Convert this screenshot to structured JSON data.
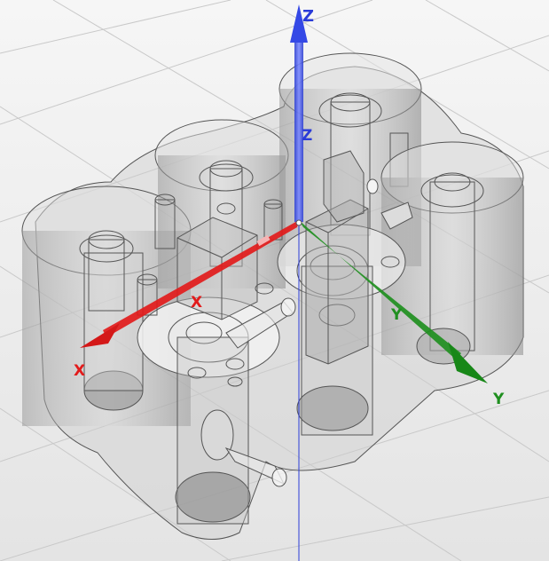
{
  "viewport": {
    "axes": {
      "z": {
        "label": "Z",
        "color": "#2a3bd8"
      },
      "x": {
        "label": "X",
        "color": "#e21b1b"
      },
      "y": {
        "label": "Y",
        "color": "#1f8f1f"
      }
    },
    "model": {
      "type": "translucent 3D solid body with cylindrical bores"
    }
  }
}
